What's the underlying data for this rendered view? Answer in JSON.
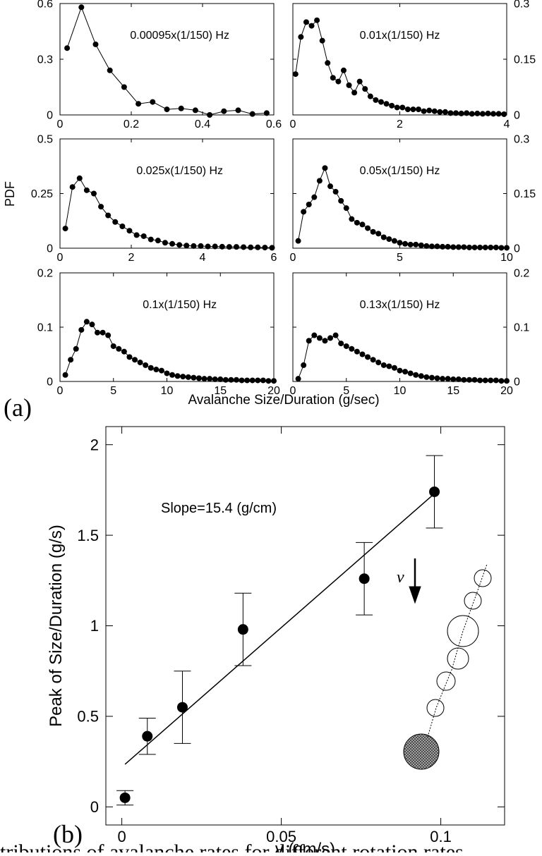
{
  "figure": {
    "ylabel": "PDF",
    "xlabel": "Avalanche Size/Duration (g/sec)",
    "panel_a": "(a)",
    "panel_b": "(b)",
    "caption": "tributions of avalanche rates for different rotation rates"
  },
  "chart_data": [
    {
      "type": "line",
      "annotation": "0.00095x(1/150) Hz",
      "color": "#000000",
      "tick_side": "left",
      "x": [
        0.02,
        0.06,
        0.1,
        0.14,
        0.18,
        0.22,
        0.26,
        0.3,
        0.34,
        0.38,
        0.42,
        0.46,
        0.5,
        0.54,
        0.58
      ],
      "values": [
        0.36,
        0.58,
        0.38,
        0.24,
        0.15,
        0.06,
        0.07,
        0.03,
        0.035,
        0.025,
        0.0,
        0.02,
        0.025,
        0.005,
        0.01
      ],
      "xlim": [
        0,
        0.6
      ],
      "xticks": [
        0,
        0.2,
        0.4,
        0.6
      ],
      "ylim": [
        0,
        0.6
      ],
      "yticks": [
        0,
        0.3,
        0.6
      ]
    },
    {
      "type": "line",
      "annotation": "0.01x(1/150) Hz",
      "color": "#000000",
      "tick_side": "right",
      "x": [
        0.05,
        0.15,
        0.25,
        0.35,
        0.45,
        0.55,
        0.65,
        0.75,
        0.85,
        0.95,
        1.05,
        1.15,
        1.25,
        1.35,
        1.45,
        1.55,
        1.65,
        1.75,
        1.85,
        1.95,
        2.05,
        2.15,
        2.25,
        2.35,
        2.45,
        2.55,
        2.65,
        2.75,
        2.85,
        2.95,
        3.05,
        3.15,
        3.25,
        3.35,
        3.45,
        3.55,
        3.65,
        3.75,
        3.85,
        3.95
      ],
      "values": [
        0.11,
        0.21,
        0.25,
        0.24,
        0.255,
        0.2,
        0.14,
        0.1,
        0.09,
        0.12,
        0.08,
        0.06,
        0.09,
        0.07,
        0.05,
        0.04,
        0.035,
        0.03,
        0.025,
        0.02,
        0.02,
        0.015,
        0.015,
        0.015,
        0.01,
        0.012,
        0.01,
        0.008,
        0.008,
        0.005,
        0.005,
        0.004,
        0.005,
        0.003,
        0.004,
        0.003,
        0.004,
        0.003,
        0.003,
        0.002
      ],
      "xlim": [
        0,
        4
      ],
      "xticks": [
        0,
        2,
        4
      ],
      "ylim": [
        0,
        0.3
      ],
      "yticks": [
        0,
        0.15,
        0.3
      ]
    },
    {
      "type": "line",
      "annotation": "0.025x(1/150) Hz",
      "color": "#000000",
      "tick_side": "left",
      "x": [
        0.15,
        0.35,
        0.55,
        0.75,
        0.95,
        1.15,
        1.35,
        1.55,
        1.75,
        1.95,
        2.15,
        2.35,
        2.55,
        2.75,
        2.95,
        3.15,
        3.35,
        3.55,
        3.75,
        3.95,
        4.15,
        4.35,
        4.55,
        4.75,
        4.95,
        5.15,
        5.35,
        5.55,
        5.75,
        5.95
      ],
      "values": [
        0.09,
        0.28,
        0.32,
        0.265,
        0.25,
        0.19,
        0.15,
        0.12,
        0.1,
        0.08,
        0.06,
        0.055,
        0.04,
        0.035,
        0.025,
        0.02,
        0.015,
        0.012,
        0.01,
        0.01,
        0.008,
        0.008,
        0.007,
        0.006,
        0.006,
        0.005,
        0.004,
        0.004,
        0.003,
        0.002
      ],
      "xlim": [
        0,
        6
      ],
      "xticks": [
        0,
        2,
        4,
        6
      ],
      "ylim": [
        0,
        0.5
      ],
      "yticks": [
        0,
        0.25,
        0.5
      ]
    },
    {
      "type": "line",
      "annotation": "0.05x(1/150) Hz",
      "color": "#000000",
      "tick_side": "right",
      "x": [
        0.25,
        0.5,
        0.75,
        1,
        1.25,
        1.5,
        1.75,
        2,
        2.25,
        2.5,
        2.75,
        3,
        3.25,
        3.5,
        3.75,
        4,
        4.25,
        4.5,
        4.75,
        5,
        5.25,
        5.5,
        5.75,
        6,
        6.25,
        6.5,
        6.75,
        7,
        7.25,
        7.5,
        7.75,
        8,
        8.25,
        8.5,
        8.75,
        9,
        9.25,
        9.5,
        9.75,
        10
      ],
      "values": [
        0.02,
        0.1,
        0.12,
        0.14,
        0.185,
        0.22,
        0.17,
        0.155,
        0.13,
        0.11,
        0.08,
        0.07,
        0.065,
        0.055,
        0.045,
        0.04,
        0.03,
        0.025,
        0.02,
        0.015,
        0.012,
        0.01,
        0.01,
        0.008,
        0.006,
        0.005,
        0.005,
        0.004,
        0.004,
        0.003,
        0.003,
        0.003,
        0.002,
        0.002,
        0.002,
        0.002,
        0.002,
        0.002,
        0.001,
        0.001
      ],
      "xlim": [
        0,
        10
      ],
      "xticks": [
        0,
        5,
        10
      ],
      "ylim": [
        0,
        0.3
      ],
      "yticks": [
        0,
        0.15,
        0.3
      ]
    },
    {
      "type": "line",
      "annotation": "0.1x(1/150) Hz",
      "color": "#000000",
      "tick_side": "left",
      "x": [
        0.5,
        1,
        1.5,
        2,
        2.5,
        3,
        3.5,
        4,
        4.5,
        5,
        5.5,
        6,
        6.5,
        7,
        7.5,
        8,
        8.5,
        9,
        9.5,
        10,
        10.5,
        11,
        11.5,
        12,
        12.5,
        13,
        13.5,
        14,
        14.5,
        15,
        15.5,
        16,
        16.5,
        17,
        17.5,
        18,
        18.5,
        19,
        19.5,
        20
      ],
      "values": [
        0.012,
        0.04,
        0.06,
        0.095,
        0.11,
        0.105,
        0.09,
        0.09,
        0.085,
        0.065,
        0.06,
        0.055,
        0.045,
        0.04,
        0.035,
        0.03,
        0.025,
        0.022,
        0.02,
        0.015,
        0.012,
        0.01,
        0.009,
        0.008,
        0.007,
        0.006,
        0.005,
        0.005,
        0.004,
        0.004,
        0.003,
        0.003,
        0.003,
        0.002,
        0.002,
        0.002,
        0.002,
        0.002,
        0.001,
        0.001
      ],
      "xlim": [
        0,
        20
      ],
      "xticks": [
        0,
        5,
        10,
        15,
        20
      ],
      "ylim": [
        0,
        0.2
      ],
      "yticks": [
        0,
        0.1,
        0.2
      ]
    },
    {
      "type": "line",
      "annotation": "0.13x(1/150) Hz",
      "color": "#000000",
      "tick_side": "right",
      "x": [
        0.5,
        1,
        1.5,
        2,
        2.5,
        3,
        3.5,
        4,
        4.5,
        5,
        5.5,
        6,
        6.5,
        7,
        7.5,
        8,
        8.5,
        9,
        9.5,
        10,
        10.5,
        11,
        11.5,
        12,
        12.5,
        13,
        13.5,
        14,
        14.5,
        15,
        15.5,
        16,
        16.5,
        17,
        17.5,
        18,
        18.5,
        19,
        19.5,
        20
      ],
      "values": [
        0.005,
        0.03,
        0.075,
        0.085,
        0.08,
        0.075,
        0.08,
        0.085,
        0.07,
        0.065,
        0.06,
        0.055,
        0.05,
        0.045,
        0.04,
        0.035,
        0.03,
        0.028,
        0.025,
        0.02,
        0.018,
        0.015,
        0.012,
        0.01,
        0.008,
        0.007,
        0.006,
        0.005,
        0.005,
        0.004,
        0.004,
        0.003,
        0.003,
        0.003,
        0.002,
        0.002,
        0.002,
        0.002,
        0.001,
        0.001
      ],
      "xlim": [
        0,
        20
      ],
      "xticks": [
        0,
        5,
        10,
        15,
        20
      ],
      "ylim": [
        0,
        0.2
      ],
      "yticks": [
        0,
        0.1,
        0.2
      ]
    },
    {
      "type": "scatter",
      "xlabel": "v (cm/s)",
      "ylabel": "Peak of Size/Duration (g/s)",
      "annotation": "Slope=15.4 (g/cm)",
      "inset_label": "v",
      "x": [
        0.001,
        0.008,
        0.019,
        0.038,
        0.076,
        0.098
      ],
      "series": [
        {
          "color": "#000000",
          "values": [
            0.05,
            0.39,
            0.55,
            0.98,
            1.26,
            1.74
          ],
          "errors": [
            0.04,
            0.1,
            0.2,
            0.2,
            0.2,
            0.2
          ]
        }
      ],
      "fit": {
        "x": [
          0.001,
          0.098
        ],
        "values": [
          0.235,
          1.73
        ]
      },
      "xlim": [
        -0.005,
        0.12
      ],
      "xticks": [
        0,
        0.05,
        0.1
      ],
      "ylim": [
        -0.1,
        2.1
      ],
      "yticks": [
        0,
        0.5,
        1,
        1.5,
        2
      ]
    }
  ]
}
